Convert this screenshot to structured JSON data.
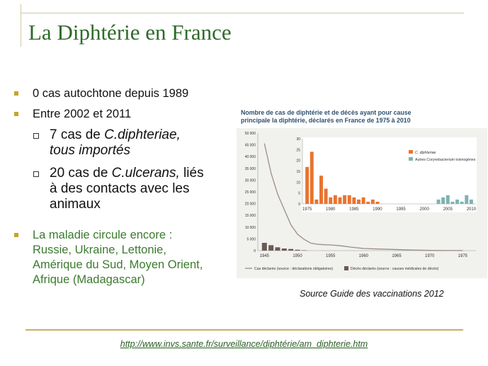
{
  "slide": {
    "title": "La Diphtérie en France",
    "bullet1": "0 cas autochtone depuis 1989",
    "bullet2": "Entre 2002 et 2011",
    "sub1_pre": "7 cas de ",
    "sub1_italic": "C.diphteriae,",
    "sub1_line2": "tous importés",
    "sub2_pre": "20 cas de ",
    "sub2_italic": "C.ulcerans,",
    "sub2_post": " liés",
    "sub2_line2": "à des contacts avec  les",
    "sub2_line3": "animaux",
    "bullet3_line1": "La maladie circule encore :",
    "bullet3_line2": "Russie, Ukraine, Lettonie,",
    "bullet3_line3": "Amérique du Sud, Moyen Orient,",
    "bullet3_line4": "Afrique (Madagascar)",
    "source": "Source Guide des vaccinations 2012",
    "link": "http://www.invs.sante.fr/surveillance/diphtérie/am_diphterie.htm",
    "accent_color": "#2f6b2a",
    "bullet_color": "#c9a227"
  },
  "chart_data": [
    {
      "type": "line",
      "title_line1": "Nombre de cas de diphtérie et de décès ayant pour cause",
      "title_line2": "principale la diphtérie, déclarés en France de 1975 à 2010",
      "ylim": [
        0,
        50000
      ],
      "yticks": [
        "50 000",
        "45 000",
        "40 000",
        "35 000",
        "30 000",
        "25 000",
        "20 000",
        "15 000",
        "10 000",
        "5 000",
        "0"
      ],
      "xticks": [
        "1945",
        "1950",
        "1955",
        "1960",
        "1965",
        "1970",
        "1975"
      ],
      "xlim": [
        1944,
        1977
      ],
      "series": [
        {
          "name": "Cas déclarés (source : déclarations obligatoires)",
          "color": "#9a8e86",
          "x": [
            1945,
            1946,
            1947,
            1948,
            1949,
            1950,
            1951,
            1952,
            1953,
            1954,
            1955,
            1956,
            1957,
            1958,
            1959,
            1960,
            1962,
            1964,
            1966,
            1968,
            1970,
            1972,
            1975
          ],
          "y": [
            45600,
            33000,
            24000,
            17500,
            11000,
            7000,
            4800,
            3200,
            2700,
            2500,
            2400,
            2200,
            1900,
            1500,
            1200,
            900,
            700,
            550,
            350,
            200,
            100,
            50,
            20
          ]
        },
        {
          "name": "Décès déclarés (source : causes médicales de décès)",
          "color": "#6b5a55",
          "type": "bar",
          "x": [
            1945,
            1946,
            1947,
            1948,
            1949,
            1950,
            1951
          ],
          "y": [
            3300,
            2300,
            1400,
            900,
            700,
            350,
            150
          ]
        }
      ],
      "legend": [
        "Cas déclarés (source : déclarations obligatoires)",
        "Décès déclarés (source : causes médicales de décès)"
      ]
    },
    {
      "type": "bar",
      "ylim": [
        0,
        30
      ],
      "yticks": [
        "30",
        "25",
        "20",
        "15",
        "10",
        "5",
        "0"
      ],
      "xticks": [
        "1975",
        "1980",
        "1985",
        "1990",
        "1995",
        "2000",
        "2005",
        "2010"
      ],
      "xlim": [
        1974,
        2011
      ],
      "legend_placement": "top-right",
      "series": [
        {
          "name": "C. diphteriae",
          "color": "#e8742f",
          "x": [
            1975,
            1976,
            1977,
            1978,
            1979,
            1980,
            1981,
            1982,
            1983,
            1984,
            1985,
            1986,
            1987,
            1988,
            1989,
            1990,
            1991,
            1992,
            1993,
            1994,
            1995,
            1996,
            1997,
            1998,
            1999,
            2000,
            2001,
            2002,
            2003,
            2004,
            2005,
            2006,
            2007,
            2008,
            2009,
            2010
          ],
          "y": [
            17,
            24,
            2,
            13,
            7,
            3,
            4,
            3,
            4,
            4,
            3,
            2,
            3,
            1,
            2,
            1,
            0,
            0,
            0,
            0,
            0,
            0,
            0,
            0,
            0,
            0,
            0,
            0,
            1,
            0,
            0,
            0,
            0,
            0,
            0,
            0
          ]
        },
        {
          "name": "Autres Corynebacterium toxinogènes",
          "color": "#7fb3b0",
          "x": [
            2002,
            2003,
            2004,
            2005,
            2006,
            2007,
            2008,
            2009,
            2010
          ],
          "y": [
            0,
            2,
            3,
            4,
            1,
            2,
            1,
            4,
            2
          ]
        }
      ]
    }
  ]
}
